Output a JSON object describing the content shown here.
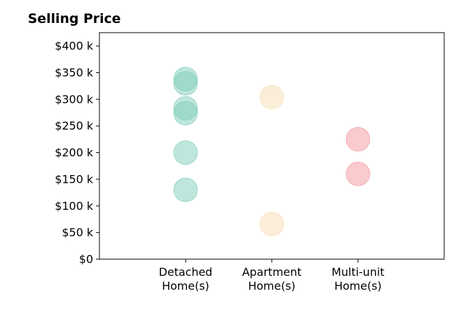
{
  "chart_data": {
    "type": "scatter",
    "title": "Selling Price",
    "xlabel": "",
    "ylabel": "",
    "categories": [
      "Detached\nHome(s)",
      "Apartment\nHome(s)",
      "Multi-unit\nHome(s)"
    ],
    "x_range": [
      0,
      4
    ],
    "ylim": [
      0,
      425000
    ],
    "yticks": [
      0,
      50000,
      100000,
      150000,
      200000,
      250000,
      300000,
      350000,
      400000
    ],
    "ytick_labels": [
      "$0",
      "$50 k",
      "$100 k",
      "$150 k",
      "$200 k",
      "$250 k",
      "$300 k",
      "$350 k",
      "$400 k"
    ],
    "grid": false,
    "series": [
      {
        "category": "Detached\nHome(s)",
        "color": "#7fcdbb",
        "values": [
          338000,
          330000,
          283000,
          274000,
          200000,
          130000
        ]
      },
      {
        "category": "Apartment\nHome(s)",
        "color": "#f5deb3",
        "values": [
          304000,
          66000
        ]
      },
      {
        "category": "Multi-unit\nHome(s)",
        "color": "#f4989f",
        "values": [
          225000,
          160000
        ]
      }
    ]
  }
}
